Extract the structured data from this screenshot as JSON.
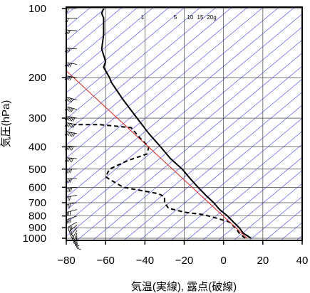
{
  "chart_data": {
    "type": "line",
    "title": "",
    "xlabel": "気温(実線), 露点(破線)",
    "ylabel": "気圧(hPa)",
    "xlim": [
      -80,
      40
    ],
    "ylim": [
      1030,
      100
    ],
    "y_scale": "log",
    "x_ticks": [
      -80,
      -60,
      -40,
      -20,
      0,
      20,
      40
    ],
    "x_tick_labels": [
      "−80",
      "−60",
      "−40",
      "−20",
      "0",
      "20",
      "40"
    ],
    "y_ticks": [
      100,
      200,
      300,
      400,
      500,
      600,
      700,
      800,
      900,
      1000
    ],
    "y_tick_labels": [
      "100",
      "200",
      "300",
      "400",
      "500",
      "600",
      "700",
      "800",
      "900",
      "1000"
    ],
    "grid": true,
    "mixing_ratio_labels": [
      "1",
      "5",
      "10",
      "15",
      "20g"
    ],
    "colors": {
      "temperature": "#000000",
      "dewpoint": "#000000",
      "parcel": "#dd2222",
      "dry_adiabats": "#3a3af0",
      "grid": "#444444"
    },
    "series": [
      {
        "style": "solid",
        "points": [
          [
            14,
            1000
          ],
          [
            10,
            950
          ],
          [
            8,
            900
          ],
          [
            5,
            850
          ],
          [
            2,
            800
          ],
          [
            -2,
            750
          ],
          [
            -5,
            700
          ],
          [
            -9,
            650
          ],
          [
            -13,
            600
          ],
          [
            -17,
            550
          ],
          [
            -21,
            500
          ],
          [
            -27,
            450
          ],
          [
            -32,
            400
          ],
          [
            -38,
            350
          ],
          [
            -44,
            300
          ],
          [
            -51,
            250
          ],
          [
            -57,
            210
          ],
          [
            -58,
            200
          ],
          [
            -61,
            180
          ],
          [
            -60,
            170
          ],
          [
            -62,
            150
          ],
          [
            -61,
            130
          ],
          [
            -61,
            118
          ],
          [
            -61,
            110
          ],
          [
            -62,
            105
          ],
          [
            -61,
            100
          ]
        ]
      },
      {
        "style": "dashed",
        "points": [
          [
            11,
            1000
          ],
          [
            8,
            950
          ],
          [
            6,
            900
          ],
          [
            3,
            850
          ],
          [
            -3,
            820
          ],
          [
            -10,
            790
          ],
          [
            -20,
            770
          ],
          [
            -28,
            740
          ],
          [
            -30,
            700
          ],
          [
            -30,
            660
          ],
          [
            -33,
            640
          ],
          [
            -51,
            600
          ],
          [
            -57,
            560
          ],
          [
            -60,
            540
          ],
          [
            -58,
            500
          ],
          [
            -49,
            460
          ],
          [
            -39,
            430
          ],
          [
            -38,
            400
          ],
          [
            -42,
            370
          ],
          [
            -47,
            330
          ],
          [
            -63,
            320
          ],
          [
            -76,
            320
          ]
        ]
      },
      {
        "style": "solid",
        "points": [
          [
            12,
            1000
          ],
          [
            -82,
            180
          ]
        ]
      }
    ],
    "wind_barbs": [
      {
        "p": 1000,
        "dir": 180,
        "speed": 10
      },
      {
        "p": 975,
        "dir": 190,
        "speed": 15
      },
      {
        "p": 950,
        "dir": 200,
        "speed": 15
      },
      {
        "p": 925,
        "dir": 210,
        "speed": 20
      },
      {
        "p": 900,
        "dir": 220,
        "speed": 20
      },
      {
        "p": 875,
        "dir": 230,
        "speed": 20
      },
      {
        "p": 850,
        "dir": 240,
        "speed": 25
      },
      {
        "p": 800,
        "dir": 250,
        "speed": 25
      },
      {
        "p": 750,
        "dir": 255,
        "speed": 25
      },
      {
        "p": 700,
        "dir": 260,
        "speed": 30
      },
      {
        "p": 650,
        "dir": 260,
        "speed": 30
      },
      {
        "p": 600,
        "dir": 265,
        "speed": 35
      },
      {
        "p": 550,
        "dir": 270,
        "speed": 35
      },
      {
        "p": 500,
        "dir": 270,
        "speed": 40
      },
      {
        "p": 450,
        "dir": 275,
        "speed": 45
      },
      {
        "p": 400,
        "dir": 275,
        "speed": 50
      },
      {
        "p": 350,
        "dir": 280,
        "speed": 55
      },
      {
        "p": 320,
        "dir": 280,
        "speed": 60
      },
      {
        "p": 300,
        "dir": 280,
        "speed": 55
      },
      {
        "p": 275,
        "dir": 285,
        "speed": 50
      },
      {
        "p": 250,
        "dir": 285,
        "speed": 45
      },
      {
        "p": 200,
        "dir": 280,
        "speed": 40
      },
      {
        "p": 175,
        "dir": 280,
        "speed": 35
      },
      {
        "p": 150,
        "dir": 275,
        "speed": 30
      },
      {
        "p": 125,
        "dir": 275,
        "speed": 25
      },
      {
        "p": 110,
        "dir": 270,
        "speed": 20
      },
      {
        "p": 100,
        "dir": 270,
        "speed": 20
      }
    ]
  }
}
